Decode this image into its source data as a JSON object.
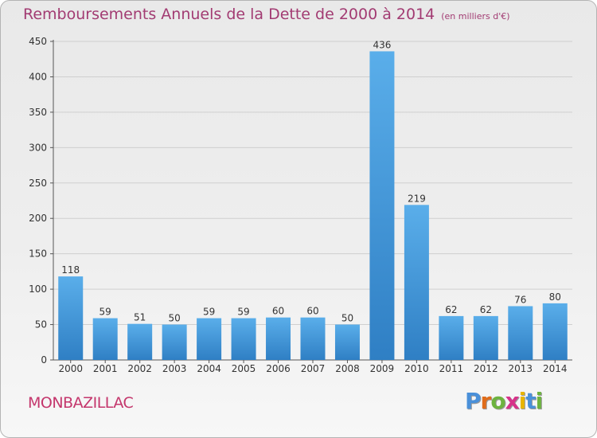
{
  "chart_data": {
    "type": "bar",
    "title": "Remboursements Annuels de la Dette de 2000 à 2014",
    "unit_label": "(en milliers d'€)",
    "categories": [
      "2000",
      "2001",
      "2002",
      "2003",
      "2004",
      "2005",
      "2006",
      "2007",
      "2008",
      "2009",
      "2010",
      "2011",
      "2012",
      "2013",
      "2014"
    ],
    "values": [
      118,
      59,
      51,
      50,
      59,
      59,
      60,
      60,
      50,
      436,
      219,
      62,
      62,
      76,
      80
    ],
    "ylim": [
      0,
      450
    ],
    "yticks": [
      0,
      50,
      100,
      150,
      200,
      250,
      300,
      350,
      400,
      450
    ],
    "grid": true,
    "bar_color": "#3a8fd6"
  },
  "footer": {
    "town": "MONBAZILLAC",
    "logo_text": "Proxiti"
  }
}
